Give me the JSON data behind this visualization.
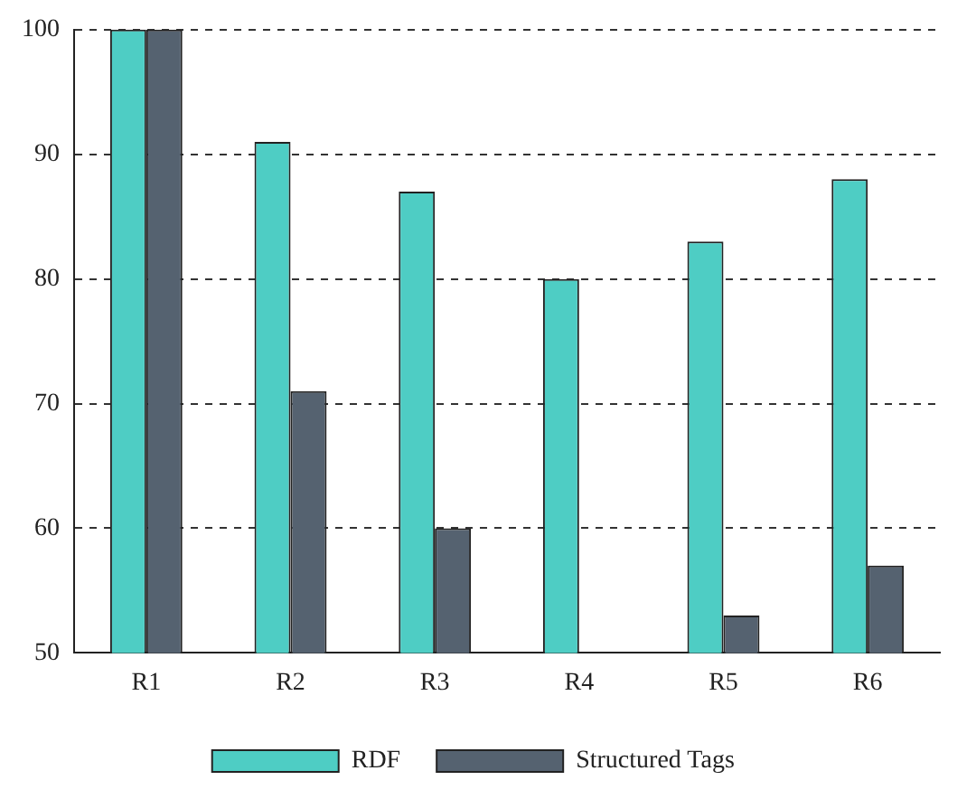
{
  "chart_data": {
    "type": "bar",
    "categories": [
      "R1",
      "R2",
      "R3",
      "R4",
      "R5",
      "R6"
    ],
    "series": [
      {
        "name": "RDF",
        "color": "#4ecdc4",
        "values": [
          100,
          91,
          87,
          80,
          83,
          88
        ]
      },
      {
        "name": "Structured Tags",
        "color": "#556270",
        "values": [
          100,
          71,
          60,
          null,
          53,
          57
        ]
      }
    ],
    "ylim": [
      50,
      100
    ],
    "yticks": [
      50,
      60,
      70,
      80,
      90,
      100
    ],
    "grid": "y",
    "legend": "bottom"
  }
}
